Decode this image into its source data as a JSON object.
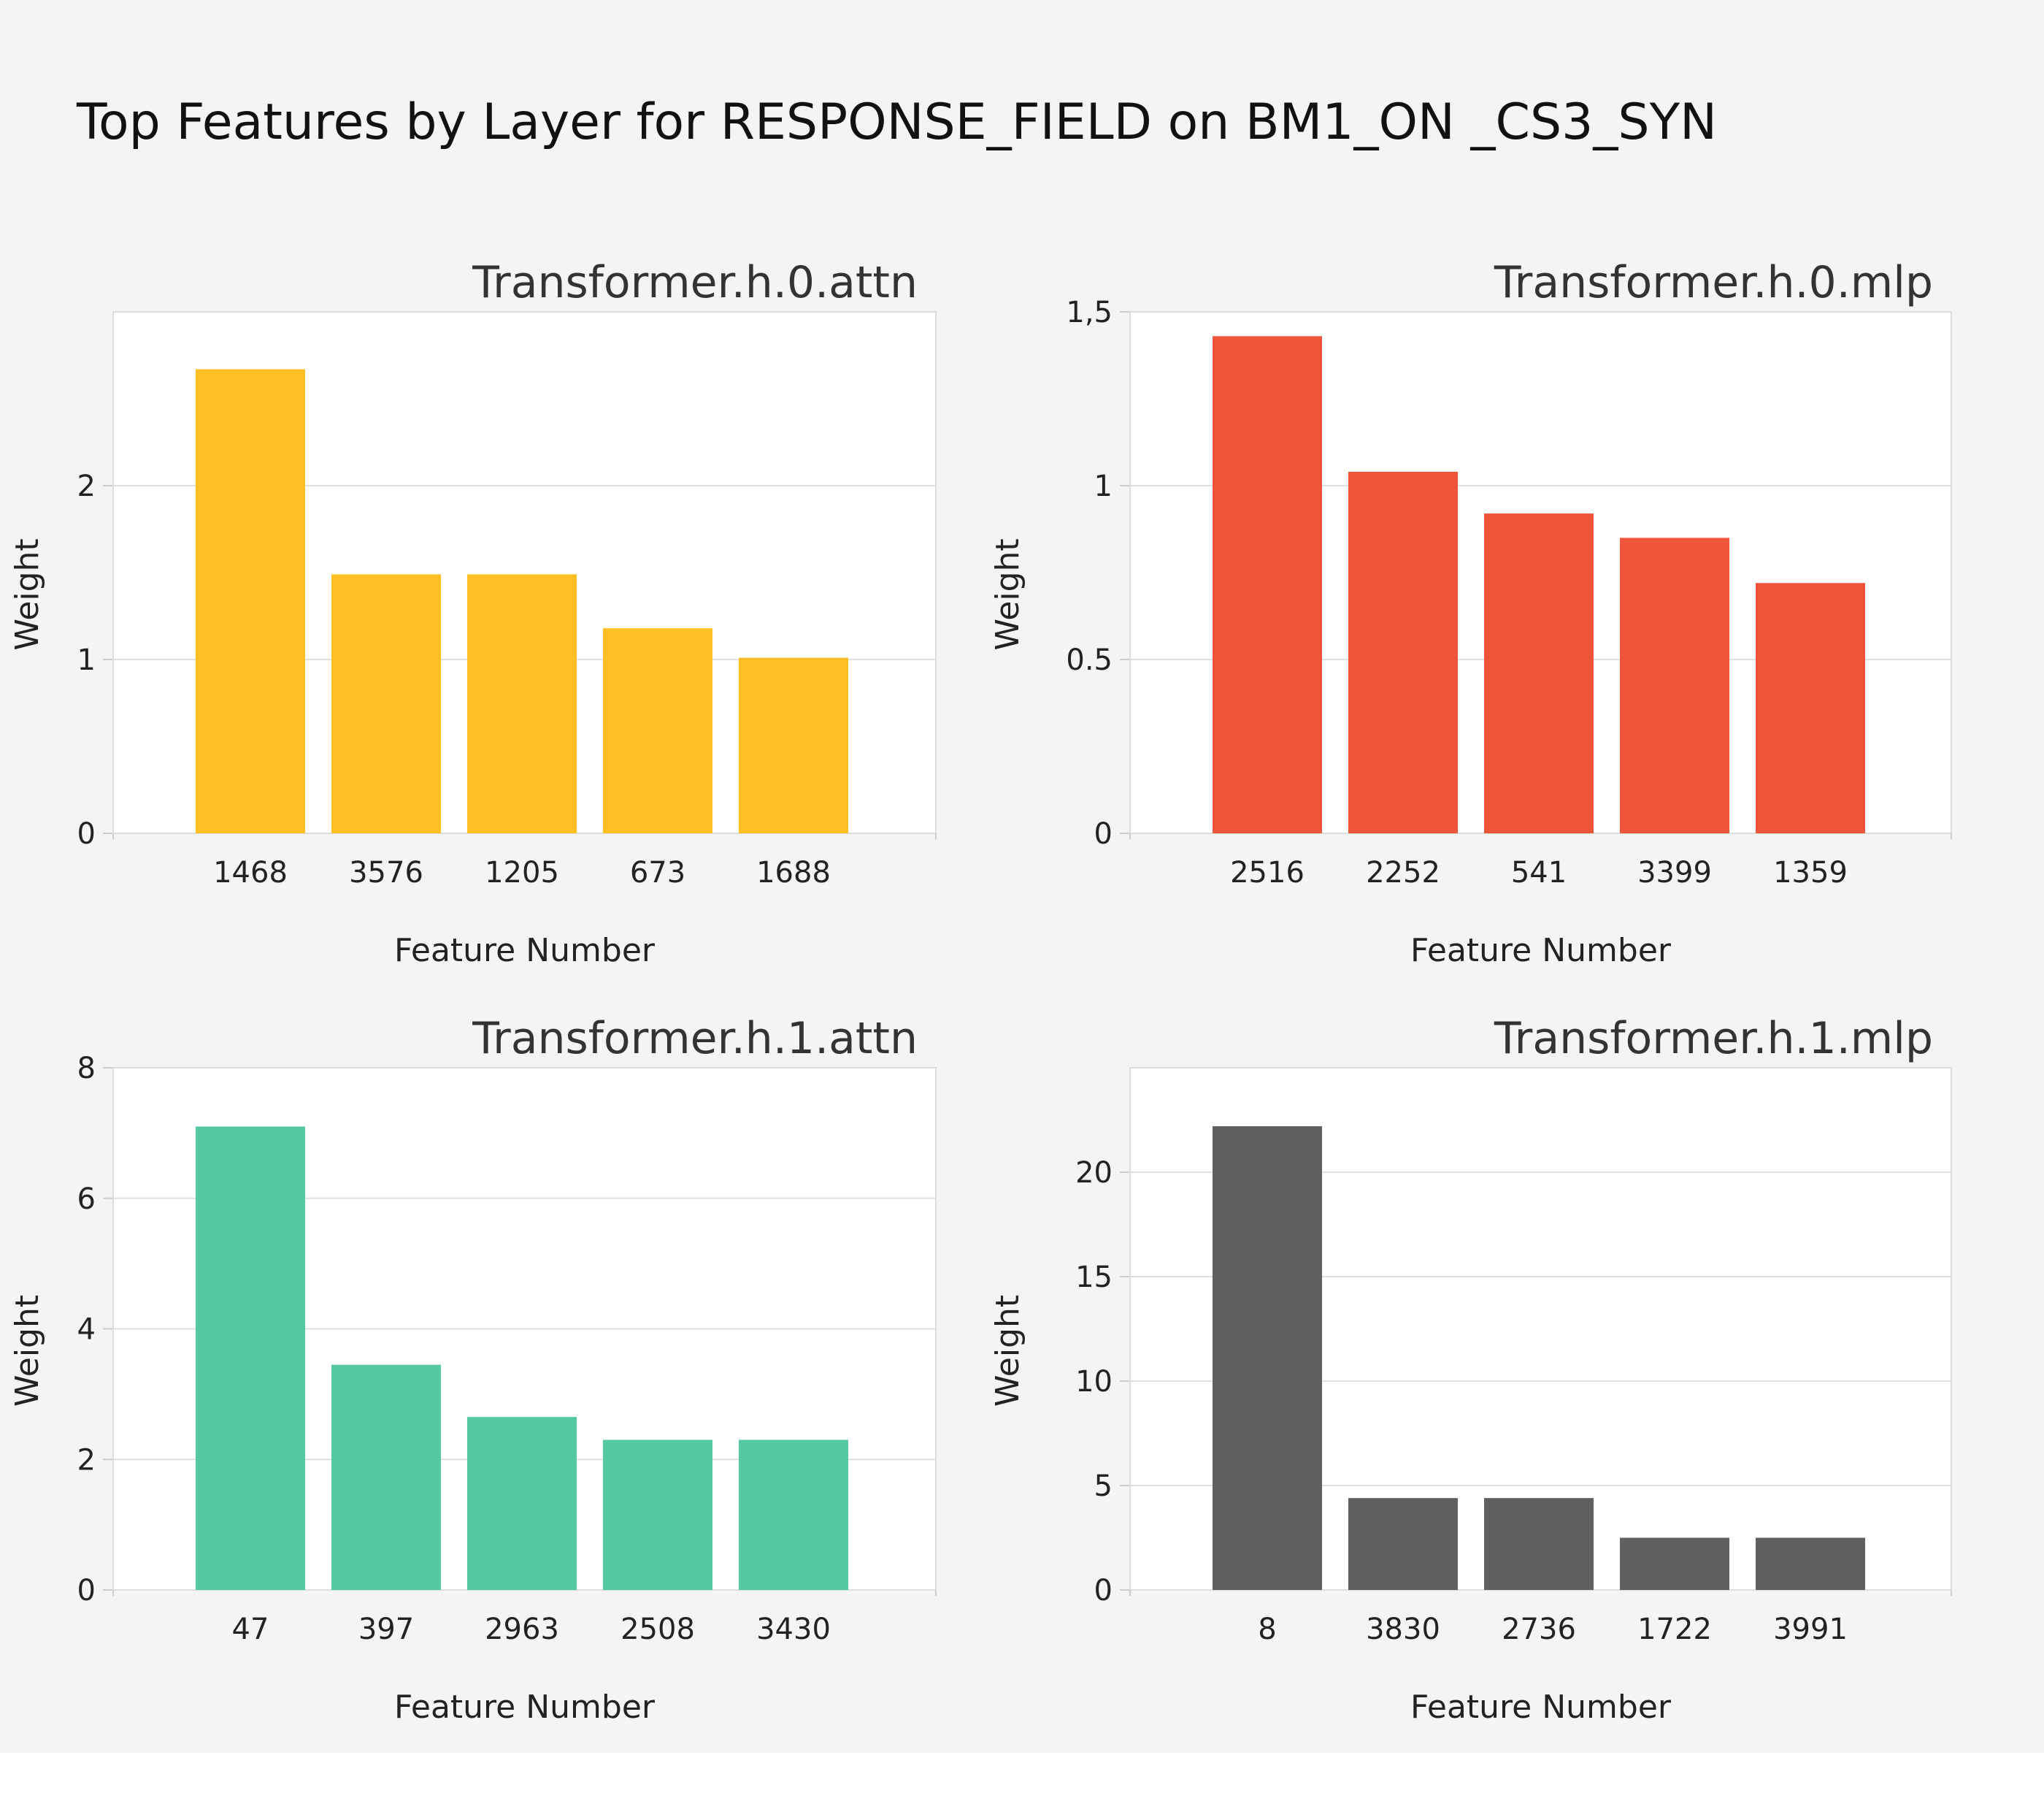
{
  "title": "Top Features by Layer for RESPONSE_FIELD on BM1_ON _CS3_SYN",
  "chart_data": [
    {
      "type": "bar",
      "title": "Transformer.h.0.attn",
      "xlabel": "Feature Number",
      "ylabel": "Weight",
      "categories": [
        "1468",
        "3576",
        "1205",
        "673",
        "1688"
      ],
      "values": [
        2.67,
        1.49,
        1.49,
        1.18,
        1.01
      ],
      "ylim": [
        0,
        3.0
      ],
      "ticks": [
        0,
        1,
        2
      ],
      "tick_labels": [
        "0",
        "1",
        "2"
      ],
      "color": "#fbbf24"
    },
    {
      "type": "bar",
      "title": "Transformer.h.0.mlp",
      "xlabel": "Feature Number",
      "ylabel": "Weight",
      "categories": [
        "2516",
        "2252",
        "541",
        "3399",
        "1359"
      ],
      "values": [
        1.43,
        1.04,
        0.92,
        0.85,
        0.72
      ],
      "ylim": [
        0,
        1.5
      ],
      "ticks": [
        0,
        0.5,
        1,
        1.5
      ],
      "tick_labels": [
        "0",
        "0.5",
        "1",
        "1,5"
      ],
      "color": "#ef553b"
    },
    {
      "type": "bar",
      "title": "Transformer.h.1.attn",
      "xlabel": "Feature Number",
      "ylabel": "Weight",
      "categories": [
        "47",
        "397",
        "2963",
        "2508",
        "3430"
      ],
      "values": [
        7.1,
        3.45,
        2.65,
        2.3,
        2.3
      ],
      "ylim": [
        0,
        8
      ],
      "ticks": [
        0,
        2,
        4,
        6,
        8
      ],
      "tick_labels": [
        "0",
        "2",
        "4",
        "6",
        "8"
      ],
      "color": "#55c99f"
    },
    {
      "type": "bar",
      "title": "Transformer.h.1.mlp",
      "xlabel": "Feature Number",
      "ylabel": "Weight",
      "categories": [
        "8",
        "3830",
        "2736",
        "1722",
        "3991"
      ],
      "values": [
        22.2,
        4.4,
        4.4,
        2.5,
        2.5
      ],
      "ylim": [
        0,
        25
      ],
      "ticks": [
        0,
        5,
        10,
        15,
        20
      ],
      "tick_labels": [
        "0",
        "5",
        "10",
        "15",
        "20"
      ],
      "color": "#606060"
    }
  ]
}
